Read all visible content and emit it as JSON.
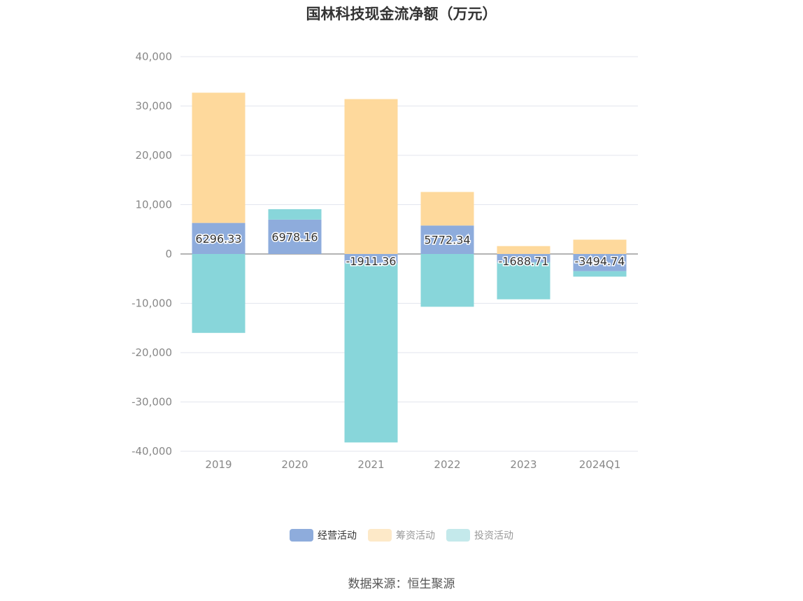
{
  "chart_data": {
    "type": "bar",
    "stacked": true,
    "title": "国林科技现金流净额（万元）",
    "categories": [
      "2019",
      "2020",
      "2021",
      "2022",
      "2023",
      "2024Q1"
    ],
    "series": [
      {
        "name": "经营活动",
        "color": "#8eacdc",
        "values": [
          6296.33,
          6978.16,
          -1911.36,
          5772.34,
          -1688.71,
          -3494.74
        ],
        "labels": [
          "6296.33",
          "6978.16",
          "-1911.36",
          "5772.34",
          "-1688.71",
          "-3494.74"
        ]
      },
      {
        "name": "筹资活动",
        "color": "#fed99c",
        "values": [
          26400,
          0,
          31400,
          6800,
          1600,
          2900
        ]
      },
      {
        "name": "投资活动",
        "color": "#88d6da",
        "values": [
          -16000,
          2100,
          -36300,
          -10700,
          -7500,
          -1100
        ]
      }
    ],
    "ylim": [
      -40000,
      40000
    ],
    "yticks": [
      "40,000",
      "30,000",
      "20,000",
      "10,000",
      "0",
      "-10,000",
      "-20,000",
      "-30,000",
      "-40,000"
    ],
    "ytick_values": [
      40000,
      30000,
      20000,
      10000,
      0,
      -10000,
      -20000,
      -30000,
      -40000
    ],
    "legend_position": "bottom",
    "legend_colors": [
      "#8eacdc",
      "#fde9c8",
      "#c4e9eb"
    ]
  },
  "source": "数据来源：恒生聚源"
}
